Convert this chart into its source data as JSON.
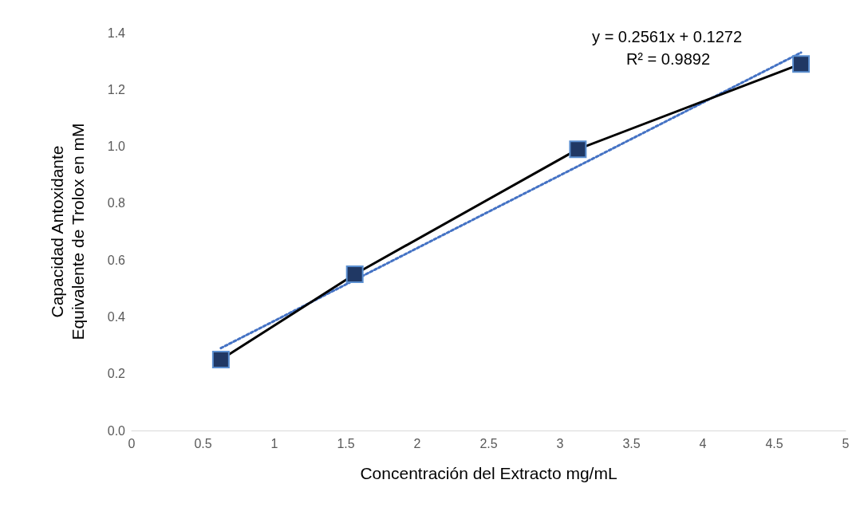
{
  "chart_data": {
    "type": "line",
    "xlabel": "Concentración del Extracto mg/mL",
    "ylabel": "Capacidad Antoxidante Equivalente de Trolox en mM",
    "series": [
      {
        "x": [
          0.625,
          1.5625,
          3.125,
          4.6875
        ],
        "values": [
          0.25,
          0.55,
          0.99,
          1.29
        ],
        "color": "#000000",
        "marker": "square",
        "line_style": "solid"
      },
      {
        "type": "line",
        "x": [
          0.625,
          4.6875
        ],
        "values": [
          0.29,
          1.33
        ],
        "color": "#4472c4",
        "marker": "none",
        "line_style": "dotted"
      }
    ],
    "annotations": [
      "y = 0.2561x + 0.1272",
      "R² = 0.9892"
    ],
    "xlim": [
      0,
      5
    ],
    "xticks": [
      0,
      0.5,
      1,
      1.5,
      2,
      2.5,
      3,
      3.5,
      4,
      4.5,
      5
    ],
    "ylim": [
      0,
      1.4
    ],
    "yticks": [
      {
        "value": 0,
        "label": "0.0"
      },
      {
        "value": 0.2,
        "label": "0.2"
      },
      {
        "value": 0.4,
        "label": "0.4"
      },
      {
        "value": 0.6,
        "label": "0.6"
      },
      {
        "value": 0.8,
        "label": "0.8"
      },
      {
        "value": 1,
        "label": "1.0"
      },
      {
        "value": 1.2,
        "label": "1.2"
      },
      {
        "value": 1.4,
        "label": "1.4"
      }
    ],
    "grid": false
  }
}
